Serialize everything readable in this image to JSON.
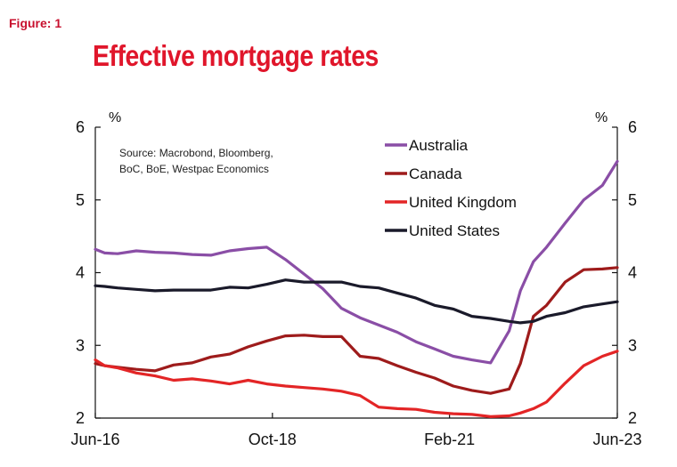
{
  "figure_label": "Figure: 1",
  "chart_data": {
    "type": "line",
    "title": "Effective mortgage rates",
    "ylabel_left": "%",
    "ylabel_right": "%",
    "ylim": [
      2,
      6
    ],
    "yticks": [
      2,
      3,
      4,
      5,
      6
    ],
    "xlim": [
      0,
      28
    ],
    "x_tick_labels": [
      "Jun-16",
      "Oct-18",
      "Feb-21",
      "Jun-23"
    ],
    "x_tick_positions": [
      0,
      9.5,
      19,
      28
    ],
    "source_lines": [
      "Source: Macrobond, Bloomberg,",
      "BoC, BoE, Westpac Economics"
    ],
    "x": [
      0,
      0.5,
      1.2,
      2.2,
      3.2,
      4.2,
      5.2,
      6.2,
      7.2,
      8.2,
      9.2,
      10.2,
      11.2,
      12.2,
      13.2,
      14.2,
      15.2,
      16.2,
      17.2,
      18.2,
      19.2,
      20.2,
      21.2,
      22.2,
      22.8,
      23.5,
      24.2,
      25.2,
      26.2,
      27.2,
      28
    ],
    "series": [
      {
        "name": "Australia",
        "color": "#8a4ea6",
        "values": [
          4.32,
          4.27,
          4.26,
          4.3,
          4.28,
          4.27,
          4.25,
          4.24,
          4.3,
          4.33,
          4.35,
          4.18,
          3.98,
          3.78,
          3.51,
          3.38,
          3.28,
          3.18,
          3.05,
          2.95,
          2.85,
          2.8,
          2.76,
          3.2,
          3.75,
          4.15,
          4.35,
          4.68,
          5.0,
          5.2,
          5.53
        ]
      },
      {
        "name": "Canada",
        "color": "#9e1b1b",
        "values": [
          2.75,
          2.72,
          2.7,
          2.67,
          2.65,
          2.73,
          2.76,
          2.84,
          2.88,
          2.98,
          3.06,
          3.13,
          3.14,
          3.12,
          3.12,
          2.85,
          2.82,
          2.72,
          2.63,
          2.55,
          2.44,
          2.38,
          2.34,
          2.4,
          2.75,
          3.4,
          3.55,
          3.87,
          4.04,
          4.05,
          4.07
        ]
      },
      {
        "name": "United Kingdom",
        "color": "#e32526",
        "values": [
          2.8,
          2.72,
          2.69,
          2.62,
          2.58,
          2.52,
          2.54,
          2.51,
          2.47,
          2.52,
          2.47,
          2.44,
          2.42,
          2.4,
          2.37,
          2.31,
          2.15,
          2.13,
          2.12,
          2.08,
          2.06,
          2.05,
          2.02,
          2.03,
          2.07,
          2.13,
          2.22,
          2.48,
          2.72,
          2.85,
          2.92
        ]
      },
      {
        "name": "United States",
        "color": "#1a1a2a",
        "values": [
          3.82,
          3.81,
          3.79,
          3.77,
          3.75,
          3.76,
          3.76,
          3.76,
          3.8,
          3.79,
          3.84,
          3.9,
          3.87,
          3.87,
          3.87,
          3.81,
          3.79,
          3.72,
          3.65,
          3.55,
          3.5,
          3.4,
          3.37,
          3.33,
          3.31,
          3.33,
          3.4,
          3.45,
          3.53,
          3.57,
          3.6
        ]
      }
    ]
  }
}
